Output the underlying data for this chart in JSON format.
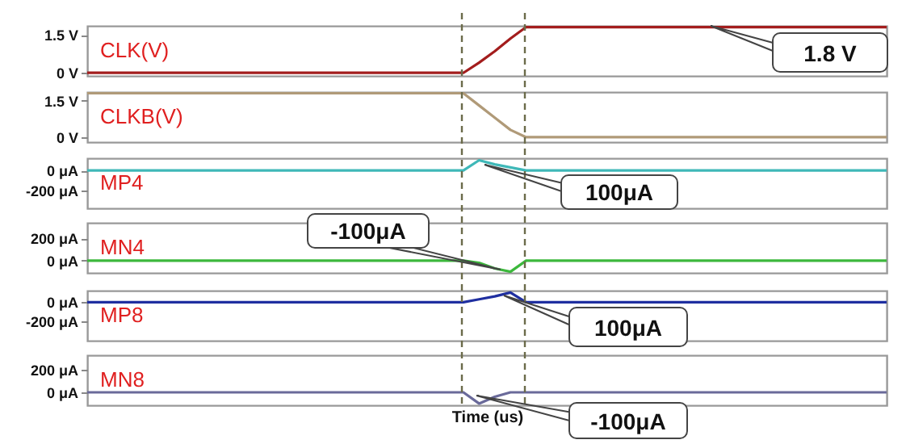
{
  "chart_data": [
    {
      "type": "line",
      "categories": [
        null,
        null,
        null,
        null,
        null,
        null,
        null,
        null,
        null,
        null,
        null,
        null,
        null,
        null,
        null,
        null,
        null,
        null,
        null,
        null,
        null,
        null,
        null,
        null,
        null,
        null,
        null,
        null,
        null,
        null,
        null,
        null,
        null,
        null,
        null,
        null,
        null,
        null,
        null,
        null,
        null,
        null,
        null,
        null,
        null,
        null,
        null,
        null,
        null,
        null,
        null,
        null
      ],
      "series": [
        {
          "name": "CLK(V)",
          "color": "#a31d1d",
          "values": [
            0,
            0,
            0,
            0,
            0,
            0,
            0,
            0,
            0,
            0,
            0,
            0,
            0,
            0,
            0,
            0,
            0,
            0,
            0,
            0,
            0,
            0,
            0,
            0,
            0,
            0.4,
            0.85,
            1.35,
            1.8,
            1.8,
            1.8,
            1.8,
            1.8,
            1.8,
            1.8,
            1.8,
            1.8,
            1.8,
            1.8,
            1.8,
            1.8,
            1.8,
            1.8,
            1.8,
            1.8,
            1.8,
            1.8,
            1.8,
            1.8,
            1.8,
            1.8,
            1.8
          ]
        }
      ],
      "ylim": [
        -0.12,
        1.85
      ],
      "yticks": [
        {
          "value": 0,
          "label": "0 V"
        },
        {
          "value": 1.5,
          "label": "1.5 V"
        }
      ],
      "tick_labels": "y",
      "annotations": [
        "1.8 V"
      ]
    },
    {
      "type": "line",
      "categories": [
        null,
        null,
        null,
        null,
        null,
        null,
        null,
        null,
        null,
        null,
        null,
        null,
        null,
        null,
        null,
        null,
        null,
        null,
        null,
        null,
        null,
        null,
        null,
        null,
        null,
        null,
        null,
        null,
        null,
        null,
        null,
        null,
        null,
        null,
        null,
        null,
        null,
        null,
        null,
        null,
        null,
        null,
        null,
        null,
        null,
        null,
        null,
        null,
        null,
        null,
        null,
        null
      ],
      "series": [
        {
          "name": "CLKB(V)",
          "color": "#b09a78",
          "values": [
            1.8,
            1.8,
            1.8,
            1.8,
            1.8,
            1.8,
            1.8,
            1.8,
            1.8,
            1.8,
            1.8,
            1.8,
            1.8,
            1.8,
            1.8,
            1.8,
            1.8,
            1.8,
            1.8,
            1.8,
            1.8,
            1.8,
            1.8,
            1.8,
            1.8,
            1.3,
            0.8,
            0.3,
            0,
            0,
            0,
            0,
            0,
            0,
            0,
            0,
            0,
            0,
            0,
            0,
            0,
            0,
            0,
            0,
            0,
            0,
            0,
            0,
            0,
            0,
            0,
            0
          ]
        }
      ],
      "ylim": [
        -0.2,
        1.85
      ],
      "yticks": [
        {
          "value": 0,
          "label": "0 V"
        },
        {
          "value": 1.5,
          "label": "1.5 V"
        }
      ],
      "tick_labels": "y"
    },
    {
      "type": "line",
      "categories": [
        null,
        null,
        null,
        null,
        null,
        null,
        null,
        null,
        null,
        null,
        null,
        null,
        null,
        null,
        null,
        null,
        null,
        null,
        null,
        null,
        null,
        null,
        null,
        null,
        null,
        null,
        null,
        null,
        null,
        null,
        null,
        null,
        null,
        null,
        null,
        null,
        null,
        null,
        null,
        null,
        null,
        null,
        null,
        null,
        null,
        null,
        null,
        null,
        null,
        null,
        null,
        null
      ],
      "series": [
        {
          "name": "MP4",
          "color": "#3fb8b8",
          "values": [
            0,
            0,
            0,
            0,
            0,
            0,
            0,
            0,
            0,
            0,
            0,
            0,
            0,
            0,
            0,
            0,
            0,
            0,
            0,
            0,
            0,
            0,
            0,
            0,
            0,
            100,
            60,
            30,
            0,
            0,
            0,
            0,
            0,
            0,
            0,
            0,
            0,
            0,
            0,
            0,
            0,
            0,
            0,
            0,
            0,
            0,
            0,
            0,
            0,
            0,
            0,
            0
          ]
        }
      ],
      "ylim": [
        -370,
        120
      ],
      "yticks": [
        {
          "value": -200,
          "label": "-200 μA"
        },
        {
          "value": 0,
          "label": "0 μA"
        }
      ],
      "tick_labels": "y",
      "annotations": [
        "100μA"
      ]
    },
    {
      "type": "line",
      "categories": [
        null,
        null,
        null,
        null,
        null,
        null,
        null,
        null,
        null,
        null,
        null,
        null,
        null,
        null,
        null,
        null,
        null,
        null,
        null,
        null,
        null,
        null,
        null,
        null,
        null,
        null,
        null,
        null,
        null,
        null,
        null,
        null,
        null,
        null,
        null,
        null,
        null,
        null,
        null,
        null,
        null,
        null,
        null,
        null,
        null,
        null,
        null,
        null,
        null,
        null,
        null,
        null
      ],
      "series": [
        {
          "name": "MN4",
          "color": "#3cb83c",
          "values": [
            0,
            0,
            0,
            0,
            0,
            0,
            0,
            0,
            0,
            0,
            0,
            0,
            0,
            0,
            0,
            0,
            0,
            0,
            0,
            0,
            0,
            0,
            0,
            0,
            0,
            -20,
            -70,
            -100,
            0,
            0,
            0,
            0,
            0,
            0,
            0,
            0,
            0,
            0,
            0,
            0,
            0,
            0,
            0,
            0,
            0,
            0,
            0,
            0,
            0,
            0,
            0,
            0
          ]
        }
      ],
      "ylim": [
        -110,
        340
      ],
      "yticks": [
        {
          "value": 0,
          "label": "0 μA"
        },
        {
          "value": 200,
          "label": "200 μA"
        }
      ],
      "tick_labels": "y",
      "annotations": [
        "-100μA"
      ]
    },
    {
      "type": "line",
      "categories": [
        null,
        null,
        null,
        null,
        null,
        null,
        null,
        null,
        null,
        null,
        null,
        null,
        null,
        null,
        null,
        null,
        null,
        null,
        null,
        null,
        null,
        null,
        null,
        null,
        null,
        null,
        null,
        null,
        null,
        null,
        null,
        null,
        null,
        null,
        null,
        null,
        null,
        null,
        null,
        null,
        null,
        null,
        null,
        null,
        null,
        null,
        null,
        null,
        null,
        null,
        null,
        null
      ],
      "series": [
        {
          "name": "MP8",
          "color": "#1f2fa0",
          "values": [
            0,
            0,
            0,
            0,
            0,
            0,
            0,
            0,
            0,
            0,
            0,
            0,
            0,
            0,
            0,
            0,
            0,
            0,
            0,
            0,
            0,
            0,
            0,
            0,
            0,
            30,
            60,
            100,
            0,
            0,
            0,
            0,
            0,
            0,
            0,
            0,
            0,
            0,
            0,
            0,
            0,
            0,
            0,
            0,
            0,
            0,
            0,
            0,
            0,
            0,
            0,
            0
          ]
        }
      ],
      "ylim": [
        -400,
        120
      ],
      "yticks": [
        {
          "value": -200,
          "label": "-200 μA"
        },
        {
          "value": 0,
          "label": "0 μA"
        }
      ],
      "tick_labels": "y",
      "annotations": [
        "100μA"
      ]
    },
    {
      "type": "line",
      "categories": [
        null,
        null,
        null,
        null,
        null,
        null,
        null,
        null,
        null,
        null,
        null,
        null,
        null,
        null,
        null,
        null,
        null,
        null,
        null,
        null,
        null,
        null,
        null,
        null,
        null,
        null,
        null,
        null,
        null,
        null,
        null,
        null,
        null,
        null,
        null,
        null,
        null,
        null,
        null,
        null,
        null,
        null,
        null,
        null,
        null,
        null,
        null,
        null,
        null,
        null,
        null,
        null
      ],
      "series": [
        {
          "name": "MN8",
          "color": "#6a6a9a",
          "values": [
            0,
            0,
            0,
            0,
            0,
            0,
            0,
            0,
            0,
            0,
            0,
            0,
            0,
            0,
            0,
            0,
            0,
            0,
            0,
            0,
            0,
            0,
            0,
            0,
            0,
            -100,
            -40,
            0,
            0,
            0,
            0,
            0,
            0,
            0,
            0,
            0,
            0,
            0,
            0,
            0,
            0,
            0,
            0,
            0,
            0,
            0,
            0,
            0,
            0,
            0,
            0,
            0
          ]
        }
      ],
      "ylim": [
        -115,
        330
      ],
      "yticks": [
        {
          "value": 0,
          "label": "0 μA"
        },
        {
          "value": 200,
          "label": "200 μA"
        }
      ],
      "tick_labels": "y",
      "xlabel": "Time (us)",
      "annotations": [
        "-100μA"
      ]
    }
  ]
}
